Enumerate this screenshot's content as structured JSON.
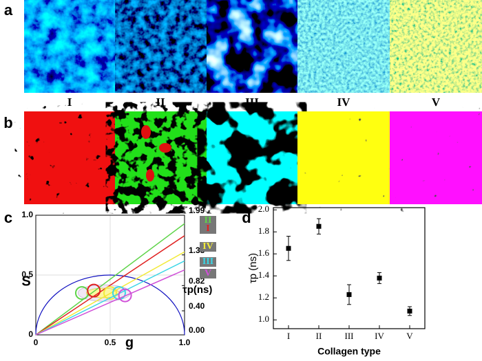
{
  "panel_labels": [
    "a",
    "b",
    "c",
    "d"
  ],
  "image_labels": [
    "I",
    "II",
    "III",
    "IV",
    "V"
  ],
  "chart_data": [
    {
      "type": "phasor",
      "xlabel": "g",
      "ylabel": "S",
      "y2label": "τp(ns)",
      "xlim": [
        0,
        1
      ],
      "ylim": [
        0,
        1
      ],
      "xticks": [
        0,
        0.5,
        {
          "value": 1,
          "label": "1.0"
        }
      ],
      "yticks": [
        0,
        0.5,
        {
          "value": 1,
          "label": "1.0"
        }
      ],
      "y2lim": [
        0,
        1.99
      ],
      "y2ticks": [
        1.99,
        1.33,
        0.82,
        {
          "value": 0.4,
          "label": "0.40"
        },
        {
          "value": 0,
          "label": "0.00"
        }
      ],
      "series": [
        {
          "name": "II",
          "color": "#5fd44a",
          "axis": "y2",
          "values": [
            1.85
          ]
        },
        {
          "name": "I",
          "color": "#e02020",
          "axis": "y2",
          "values": [
            1.65
          ]
        },
        {
          "name": "IV",
          "color": "#f2ea3a",
          "axis": "y2",
          "values": [
            1.38
          ]
        },
        {
          "name": "III",
          "color": "#3ad6e6",
          "axis": "y2",
          "values": [
            1.23
          ]
        },
        {
          "name": "V",
          "color": "#d050d8",
          "axis": "y2",
          "values": [
            1.08
          ]
        }
      ],
      "clusters": {
        "x": [
          0.31,
          0.39,
          0.5,
          0.56,
          0.6
        ],
        "y": [
          0.35,
          0.37,
          0.35,
          0.35,
          0.33
        ]
      }
    },
    {
      "type": "errorbar",
      "xlabel": "Collagen type",
      "ylabel": "τp (ns)",
      "categories": [
        "I",
        "II",
        "III",
        "IV",
        "V"
      ],
      "values": [
        1.65,
        1.85,
        1.23,
        1.38,
        1.08
      ],
      "errors": [
        0.11,
        0.07,
        0.09,
        0.05,
        0.04
      ],
      "ylim": [
        0.92,
        2.02
      ],
      "yticks": [
        {
          "value": 1,
          "label": "1.0"
        },
        1.2,
        1.4,
        1.6,
        1.8,
        {
          "value": 2,
          "label": "2.0"
        }
      ],
      "color": "#000000"
    }
  ]
}
